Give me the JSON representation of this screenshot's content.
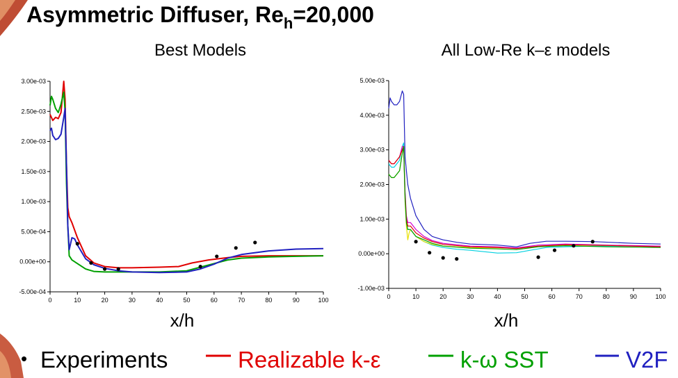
{
  "slide": {
    "title_main": "Asymmetric Diffuser, Re",
    "title_sub": "h",
    "title_tail": "=20,000",
    "bullet": "•"
  },
  "colors": {
    "realizable": "#e00000",
    "sst": "#00a000",
    "v2f": "#2020c0",
    "cyan": "#00d0e0",
    "yellow": "#e8e000",
    "magenta": "#d000d0",
    "experiment": "#000000"
  },
  "legend": [
    {
      "label": "Experiments",
      "color": "#000000",
      "marker": "none"
    },
    {
      "label": "Realizable k-ε",
      "color": "#e00000",
      "marker": "line"
    },
    {
      "label": "k-ω SST",
      "color": "#00a000",
      "marker": "line"
    },
    {
      "label": "V2F",
      "color": "#2020c0",
      "marker": "line"
    }
  ],
  "chart_data": [
    {
      "type": "line",
      "title": "Best Models",
      "xlabel": "x/h",
      "ylabel": "",
      "xlim": [
        0,
        100
      ],
      "ylim": [
        -0.0005,
        0.003
      ],
      "xticks": [
        0,
        10,
        20,
        30,
        40,
        50,
        60,
        70,
        80,
        90,
        100
      ],
      "yticks": [
        -0.0005,
        0,
        0.0005,
        0.001,
        0.0015,
        0.002,
        0.0025,
        0.003
      ],
      "ytick_labels": [
        "-5.00e-04",
        "0.00e+00",
        "5.00e-04",
        "1.00e-03",
        "1.50e-03",
        "2.00e-03",
        "2.50e-03",
        "3.00e-03"
      ],
      "series": [
        {
          "name": "Realizable k-ε",
          "color": "#e00000",
          "x": [
            0,
            1,
            2,
            3,
            4,
            5,
            5.5,
            6,
            6.5,
            7,
            8,
            10,
            13,
            16,
            20,
            25,
            30,
            40,
            47,
            52,
            58,
            65,
            70,
            80,
            90,
            100
          ],
          "y": [
            0.00245,
            0.00235,
            0.0024,
            0.00238,
            0.00248,
            0.003,
            0.0027,
            0.0016,
            0.0009,
            0.00075,
            0.00065,
            0.0004,
            0.0001,
            -2e-05,
            -8e-05,
            -0.0001,
            -0.0001,
            -9e-05,
            -8e-05,
            -2e-05,
            3e-05,
            7e-05,
            9e-05,
            0.0001,
            0.0001,
            0.0001
          ]
        },
        {
          "name": "k-ω SST",
          "color": "#00a000",
          "x": [
            0,
            0.5,
            1,
            2,
            3,
            4,
            5,
            5.5,
            6,
            6.5,
            7,
            8,
            10,
            13,
            16,
            20,
            25,
            30,
            40,
            50,
            55,
            60,
            65,
            70,
            80,
            90,
            100
          ],
          "y": [
            0.0026,
            0.00275,
            0.0027,
            0.00255,
            0.00248,
            0.00262,
            0.00282,
            0.0025,
            0.0013,
            0.0006,
            0.0001,
            3e-05,
            -3e-05,
            -0.00012,
            -0.00016,
            -0.00017,
            -0.00017,
            -0.00017,
            -0.00017,
            -0.00015,
            -9e-05,
            -3e-05,
            3e-05,
            6e-05,
            8e-05,
            9e-05,
            0.0001
          ]
        },
        {
          "name": "V2F",
          "color": "#2020c0",
          "x": [
            0,
            0.5,
            1,
            2,
            3,
            4,
            5,
            5.5,
            6,
            6.5,
            7,
            7.5,
            8,
            9,
            10,
            13,
            16,
            20,
            25,
            30,
            40,
            50,
            55,
            60,
            65,
            70,
            80,
            90,
            100
          ],
          "y": [
            0.00218,
            0.00222,
            0.0021,
            0.00203,
            0.00205,
            0.00212,
            0.0024,
            0.00255,
            0.0016,
            0.0006,
            0.0002,
            0.0003,
            0.0004,
            0.00038,
            0.00028,
            5e-05,
            -5e-05,
            -0.00011,
            -0.00015,
            -0.00017,
            -0.00018,
            -0.00017,
            -0.00012,
            -4e-05,
            6e-05,
            0.00012,
            0.00018,
            0.00021,
            0.00022
          ]
        }
      ],
      "experiments": {
        "x": [
          10,
          15,
          20,
          25,
          55,
          61,
          68,
          75
        ],
        "y": [
          0.0003,
          -2e-05,
          -0.00012,
          -0.00012,
          -8e-05,
          9e-05,
          0.00023,
          0.00032
        ]
      }
    },
    {
      "type": "line",
      "title": "All Low-Re k–ε models",
      "xlabel": "x/h",
      "ylabel": "",
      "xlim": [
        0,
        100
      ],
      "ylim": [
        -0.001,
        0.005
      ],
      "xticks": [
        0,
        10,
        20,
        30,
        40,
        50,
        60,
        70,
        80,
        90,
        100
      ],
      "yticks": [
        -0.001,
        0,
        0.001,
        0.002,
        0.003,
        0.004,
        0.005
      ],
      "ytick_labels": [
        "-1.00e-03",
        "0.00e+00",
        "1.00e-03",
        "2.00e-03",
        "3.00e-03",
        "4.00e-03",
        "5.00e-03"
      ],
      "series": [
        {
          "color": "#2020c0",
          "x": [
            0,
            0.5,
            1,
            2,
            3,
            4,
            5,
            5.5,
            6,
            6.5,
            7,
            8,
            10,
            13,
            16,
            20,
            25,
            30,
            40,
            47,
            52,
            58,
            65,
            75,
            90,
            100
          ],
          "y": [
            0.0042,
            0.0045,
            0.0044,
            0.0043,
            0.0043,
            0.0044,
            0.0047,
            0.0046,
            0.0028,
            0.0024,
            0.002,
            0.0016,
            0.0011,
            0.0007,
            0.0005,
            0.0004,
            0.00033,
            0.00028,
            0.00025,
            0.0002,
            0.0003,
            0.00036,
            0.00036,
            0.00035,
            0.0003,
            0.00028
          ]
        },
        {
          "color": "#00d0e0",
          "x": [
            0,
            1,
            2,
            3,
            4,
            5,
            5.5,
            6,
            6.5,
            7,
            8,
            10,
            13,
            16,
            20,
            25,
            30,
            40,
            47,
            52,
            58,
            65,
            75,
            90,
            100
          ],
          "y": [
            0.0026,
            0.0025,
            0.0025,
            0.0026,
            0.0027,
            0.0031,
            0.0032,
            0.0017,
            0.0009,
            0.0007,
            0.0007,
            0.0005,
            0.00035,
            0.00025,
            0.00018,
            0.00013,
            0.0001,
            2e-05,
            3e-05,
            0.0001,
            0.00018,
            0.0002,
            0.00022,
            0.00022,
            0.0002
          ]
        },
        {
          "color": "#e8e000",
          "x": [
            0,
            1,
            2,
            3,
            4,
            5,
            5.5,
            6,
            6.5,
            7,
            7.5,
            8,
            10,
            13,
            16,
            20,
            30,
            40,
            47,
            55,
            65,
            80,
            100
          ],
          "y": [
            0.0023,
            0.0022,
            0.0022,
            0.0023,
            0.0024,
            0.0029,
            0.0031,
            0.0015,
            0.0008,
            0.0004,
            0.0006,
            0.0007,
            0.0005,
            0.00035,
            0.00027,
            0.00022,
            0.00018,
            0.00017,
            0.00016,
            0.00022,
            0.00025,
            0.00024,
            0.00022
          ]
        },
        {
          "color": "#d000d0",
          "x": [
            0,
            1,
            2,
            3,
            4,
            5,
            5.5,
            6,
            6.5,
            7,
            8,
            10,
            13,
            16,
            20,
            30,
            40,
            47,
            55,
            65,
            80,
            100
          ],
          "y": [
            0.0027,
            0.0026,
            0.0026,
            0.0027,
            0.0028,
            0.0031,
            0.0031,
            0.0018,
            0.0011,
            0.0009,
            0.0009,
            0.0007,
            0.0005,
            0.00038,
            0.0003,
            0.00022,
            0.0002,
            0.00017,
            0.00025,
            0.00028,
            0.00025,
            0.00022
          ]
        },
        {
          "color": "#e00000",
          "x": [
            0,
            1,
            2,
            3,
            4,
            5,
            5.5,
            6,
            6.5,
            7,
            8,
            10,
            13,
            16,
            20,
            30,
            40,
            47,
            55,
            65,
            80,
            100
          ],
          "y": [
            0.0027,
            0.0026,
            0.0026,
            0.0027,
            0.0028,
            0.003,
            0.0031,
            0.0017,
            0.001,
            0.0008,
            0.0008,
            0.0006,
            0.00045,
            0.00035,
            0.00027,
            0.0002,
            0.00018,
            0.00015,
            0.00022,
            0.00026,
            0.00024,
            0.0002
          ]
        },
        {
          "color": "#00a000",
          "x": [
            0,
            1,
            2,
            3,
            4,
            5,
            5.5,
            6,
            6.5,
            7,
            8,
            10,
            13,
            16,
            20,
            30,
            40,
            47,
            55,
            65,
            80,
            100
          ],
          "y": [
            0.0023,
            0.0022,
            0.0022,
            0.0023,
            0.0024,
            0.0029,
            0.0031,
            0.0016,
            0.0009,
            0.0007,
            0.0007,
            0.0005,
            0.0004,
            0.0003,
            0.00022,
            0.00016,
            0.00014,
            0.00012,
            0.0002,
            0.00023,
            0.0002,
            0.00018
          ]
        }
      ],
      "experiments": {
        "x": [
          10,
          15,
          20,
          25,
          55,
          61,
          68,
          75
        ],
        "y": [
          0.00035,
          3e-05,
          -0.00012,
          -0.00015,
          -0.0001,
          0.0001,
          0.00023,
          0.00035
        ]
      }
    }
  ]
}
